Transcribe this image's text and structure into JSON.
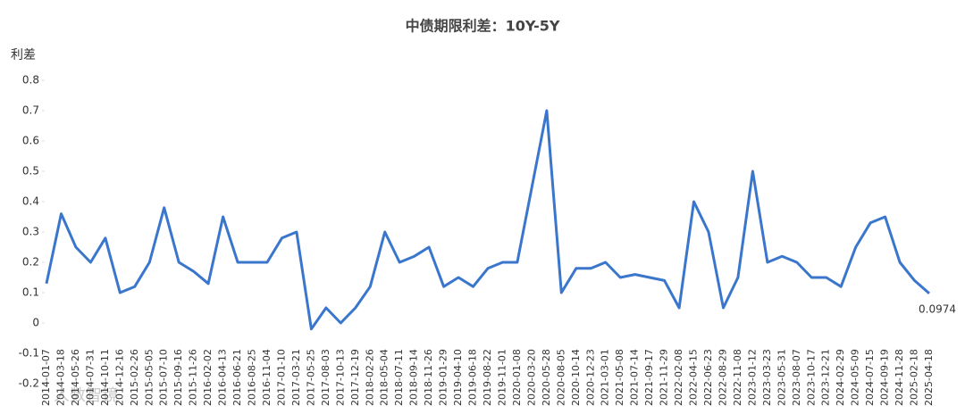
{
  "chart_data": {
    "type": "line",
    "title": "中债期限利差：10Y-5Y",
    "y_label": "利差",
    "categories": [
      "2014-01-07",
      "2014-03-18",
      "2014-05-26",
      "2014-07-31",
      "2014-10-11",
      "2014-12-16",
      "2015-02-26",
      "2015-05-05",
      "2015-07-10",
      "2015-09-16",
      "2015-11-26",
      "2016-02-02",
      "2016-04-13",
      "2016-06-21",
      "2016-08-25",
      "2016-11-04",
      "2017-01-10",
      "2017-03-21",
      "2017-05-25",
      "2017-08-03",
      "2017-10-13",
      "2017-12-19",
      "2018-02-26",
      "2018-05-04",
      "2018-07-11",
      "2018-09-14",
      "2018-11-26",
      "2019-01-29",
      "2019-04-10",
      "2019-06-18",
      "2019-08-22",
      "2019-11-01",
      "2020-01-08",
      "2020-03-20",
      "2020-05-28",
      "2020-08-05",
      "2020-10-14",
      "2020-12-23",
      "2021-03-01",
      "2021-05-08",
      "2021-07-14",
      "2021-09-17",
      "2021-11-29",
      "2022-02-08",
      "2022-04-15",
      "2022-06-23",
      "2022-08-29",
      "2022-11-08",
      "2023-01-12",
      "2023-03-23",
      "2023-05-31",
      "2023-08-07",
      "2023-10-17",
      "2023-12-21",
      "2024-02-29",
      "2024-05-09",
      "2024-07-15",
      "2024-09-19",
      "2024-11-28",
      "2025-02-18",
      "2025-04-18"
    ],
    "series": [
      {
        "name": "10Y-5Y",
        "color": "#3a76cc",
        "values": [
          0.13,
          0.36,
          0.25,
          0.2,
          0.28,
          0.1,
          0.12,
          0.2,
          0.38,
          0.2,
          0.17,
          0.13,
          0.35,
          0.2,
          0.2,
          0.2,
          0.28,
          0.3,
          -0.02,
          0.05,
          0.0,
          0.05,
          0.12,
          0.3,
          0.2,
          0.22,
          0.25,
          0.12,
          0.15,
          0.12,
          0.18,
          0.2,
          0.2,
          0.45,
          0.7,
          0.1,
          0.18,
          0.18,
          0.2,
          0.15,
          0.16,
          0.15,
          0.14,
          0.05,
          0.4,
          0.3,
          0.05,
          0.15,
          0.5,
          0.2,
          0.22,
          0.2,
          0.15,
          0.15,
          0.12,
          0.25,
          0.33,
          0.35,
          0.2,
          0.14,
          0.0974
        ]
      }
    ],
    "ylim": [
      -0.2,
      0.85
    ],
    "yticks": [
      -0.2,
      -0.1,
      0,
      0.1,
      0.2,
      0.3,
      0.4,
      0.5,
      0.6,
      0.7,
      0.8
    ],
    "grid": false,
    "watermark": "人数智镜"
  }
}
